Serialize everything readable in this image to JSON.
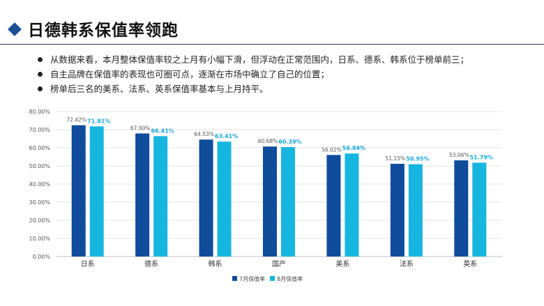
{
  "header": {
    "title": "日德韩系保值率领跑"
  },
  "bullets": [
    "从数据来看，本月整体保值率较之上月有小幅下滑，但浮动在正常范围内，日系、德系、韩系位于榜单前三；",
    "自主品牌在保值率的表现也可圈可点，逐渐在市场中确立了自己的位置；",
    "榜单后三名的美系、法系、英系保值率基本与上月持平。"
  ],
  "colors": {
    "accent": "#1a4f96",
    "series1": "#0f4c9c",
    "series2": "#17b6e0",
    "label2": "#1aa8d8"
  },
  "chart_data": {
    "type": "bar",
    "categories": [
      "日系",
      "德系",
      "韩系",
      "国产",
      "美系",
      "法系",
      "英系"
    ],
    "series": [
      {
        "name": "7月保值率",
        "values": [
          72.42,
          67.9,
          64.53,
          60.68,
          56.02,
          51.15,
          53.06
        ],
        "labels": [
          "72.42%",
          "67.90%",
          "64.53%",
          "60.68%",
          "56.02%",
          "51.15%",
          "53.06%"
        ]
      },
      {
        "name": "8月保值率",
        "values": [
          71.81,
          66.41,
          63.41,
          60.39,
          56.84,
          50.95,
          51.79
        ],
        "labels": [
          "71.81%",
          "66.41%",
          "63.41%",
          "60.39%",
          "56.84%",
          "50.95%",
          "51.79%"
        ]
      }
    ],
    "ylim": [
      0,
      80
    ],
    "yticks": [
      "0.00%",
      "10.00%",
      "20.00%",
      "30.00%",
      "40.00%",
      "50.00%",
      "60.00%",
      "70.00%",
      "80.00%"
    ],
    "grid": true,
    "legend": "bottom-right"
  }
}
